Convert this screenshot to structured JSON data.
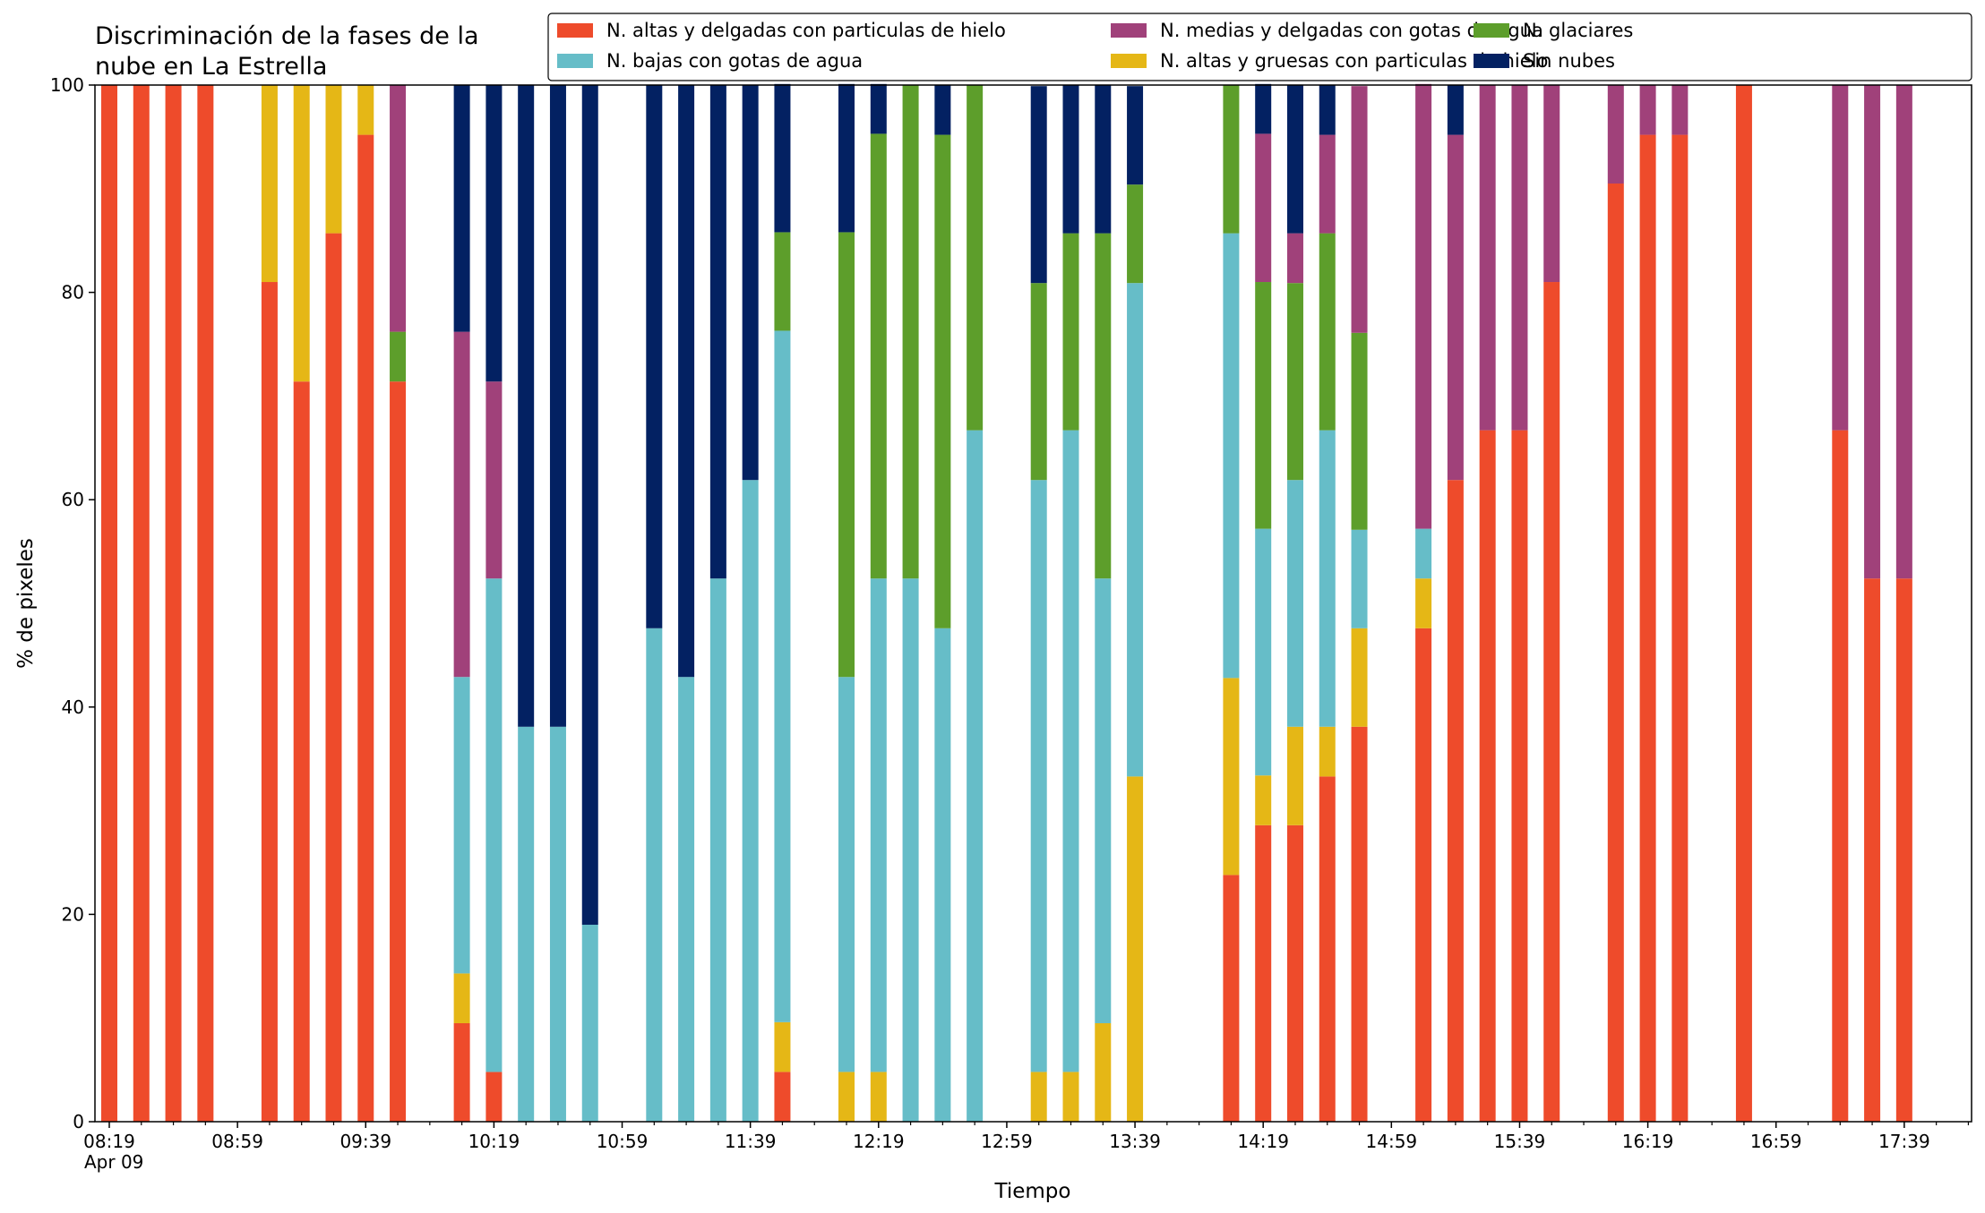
{
  "chart_data": {
    "type": "bar",
    "stacked": true,
    "title_lines": [
      "Discriminación de la fases de la",
      "nube en La Estrella"
    ],
    "xlabel": "Tiempo",
    "ylabel": "% de pixeles",
    "ylim": [
      0,
      100
    ],
    "yticks": [
      0,
      20,
      40,
      60,
      80,
      100
    ],
    "x_tick_labels": [
      "08:19",
      "08:59",
      "09:39",
      "10:19",
      "10:59",
      "11:39",
      "12:19",
      "12:59",
      "13:39",
      "14:19",
      "14:59",
      "15:39",
      "16:19",
      "16:59",
      "17:39"
    ],
    "x_date_label": "Apr 09",
    "x_start": "08:19",
    "x_end": "18:00",
    "legend_position": "top-right",
    "series": [
      {
        "name": "N. altas y delgadas con particulas de hielo",
        "color": "#ee4b2b"
      },
      {
        "name": "N. altas y gruesas con particulas de hielo",
        "color": "#e5b716"
      },
      {
        "name": "N. bajas con gotas de agua",
        "color": "#66bdc8"
      },
      {
        "name": "N. glaciares",
        "color": "#5d9e2b"
      },
      {
        "name": "N. medias y delgadas con gotas de agua",
        "color": "#a0417a"
      },
      {
        "name": "Sin nubes",
        "color": "#032162"
      }
    ],
    "legend_order": [
      0,
      2,
      4,
      1,
      3,
      5
    ],
    "bars": [
      {
        "time": "08:19",
        "values": [
          100,
          0,
          0,
          0,
          0,
          0
        ]
      },
      {
        "time": "08:29",
        "values": [
          100,
          0,
          0,
          0,
          0,
          0
        ]
      },
      {
        "time": "08:39",
        "values": [
          100,
          0,
          0,
          0,
          0,
          0
        ]
      },
      {
        "time": "08:49",
        "values": [
          100,
          0,
          0,
          0,
          0,
          0
        ]
      },
      {
        "time": "09:09",
        "values": [
          81,
          19,
          0,
          0,
          0,
          0
        ]
      },
      {
        "time": "09:19",
        "values": [
          71.4,
          28.6,
          0,
          0,
          0,
          0
        ]
      },
      {
        "time": "09:29",
        "values": [
          85.7,
          14.3,
          0,
          0,
          0,
          0
        ]
      },
      {
        "time": "09:39",
        "values": [
          95.2,
          4.8,
          0,
          0,
          0,
          0
        ]
      },
      {
        "time": "09:49",
        "values": [
          71.4,
          0,
          0,
          4.8,
          23.8,
          0
        ]
      },
      {
        "time": "10:09",
        "values": [
          9.5,
          4.8,
          28.6,
          0,
          33.3,
          23.8
        ]
      },
      {
        "time": "10:19",
        "values": [
          4.8,
          0,
          47.6,
          0,
          19,
          28.6
        ]
      },
      {
        "time": "10:29",
        "values": [
          0,
          0,
          38.1,
          0,
          0,
          61.9
        ]
      },
      {
        "time": "10:39",
        "values": [
          0,
          0,
          38.1,
          0,
          0,
          61.9
        ]
      },
      {
        "time": "10:49",
        "values": [
          0,
          0,
          19,
          0,
          0,
          81
        ]
      },
      {
        "time": "11:09",
        "values": [
          0,
          0,
          47.6,
          0,
          0,
          52.4
        ]
      },
      {
        "time": "11:19",
        "values": [
          0,
          0,
          42.9,
          0,
          0,
          57.1
        ]
      },
      {
        "time": "11:29",
        "values": [
          0,
          0,
          52.4,
          0,
          0,
          47.6
        ]
      },
      {
        "time": "11:39",
        "values": [
          0,
          0,
          61.9,
          0,
          0,
          38.1
        ]
      },
      {
        "time": "11:49",
        "values": [
          4.8,
          4.8,
          66.7,
          9.5,
          0,
          14.3
        ]
      },
      {
        "time": "12:09",
        "values": [
          0,
          4.8,
          38.1,
          42.9,
          0,
          14.3
        ]
      },
      {
        "time": "12:19",
        "values": [
          0,
          4.8,
          47.6,
          42.9,
          0,
          4.8
        ]
      },
      {
        "time": "12:29",
        "values": [
          0,
          0,
          52.4,
          47.6,
          0,
          0
        ]
      },
      {
        "time": "12:39",
        "values": [
          0,
          0,
          47.6,
          47.6,
          0,
          4.8
        ]
      },
      {
        "time": "12:49",
        "values": [
          0,
          0,
          66.7,
          33.3,
          0,
          0
        ]
      },
      {
        "time": "13:09",
        "values": [
          0,
          4.8,
          57.1,
          19,
          0,
          19
        ]
      },
      {
        "time": "13:19",
        "values": [
          0,
          4.8,
          61.9,
          19,
          0,
          14.3
        ]
      },
      {
        "time": "13:29",
        "values": [
          0,
          9.5,
          42.9,
          33.3,
          0,
          14.3
        ]
      },
      {
        "time": "13:39",
        "values": [
          0,
          33.3,
          47.6,
          9.5,
          0,
          9.5
        ]
      },
      {
        "time": "14:09",
        "values": [
          23.8,
          19,
          42.9,
          14.3,
          0,
          0
        ]
      },
      {
        "time": "14:19",
        "values": [
          28.6,
          4.8,
          23.8,
          23.8,
          14.3,
          4.8
        ]
      },
      {
        "time": "14:29",
        "values": [
          28.6,
          9.5,
          23.8,
          19,
          4.8,
          14.3
        ]
      },
      {
        "time": "14:39",
        "values": [
          33.3,
          4.8,
          28.6,
          19,
          9.5,
          4.8
        ]
      },
      {
        "time": "14:49",
        "values": [
          38.1,
          9.5,
          9.5,
          19,
          23.8,
          0
        ]
      },
      {
        "time": "15:09",
        "values": [
          47.6,
          4.8,
          4.8,
          0,
          42.9,
          0
        ]
      },
      {
        "time": "15:19",
        "values": [
          61.9,
          0,
          0,
          0,
          33.3,
          4.8
        ]
      },
      {
        "time": "15:29",
        "values": [
          66.7,
          0,
          0,
          0,
          33.3,
          0
        ]
      },
      {
        "time": "15:39",
        "values": [
          66.7,
          0,
          0,
          0,
          33.3,
          0
        ]
      },
      {
        "time": "15:49",
        "values": [
          81,
          0,
          0,
          0,
          19,
          0
        ]
      },
      {
        "time": "16:09",
        "values": [
          90.5,
          0,
          0,
          0,
          9.5,
          0
        ]
      },
      {
        "time": "16:19",
        "values": [
          95.2,
          0,
          0,
          0,
          4.8,
          0
        ]
      },
      {
        "time": "16:29",
        "values": [
          95.2,
          0,
          0,
          0,
          4.8,
          0
        ]
      },
      {
        "time": "16:49",
        "values": [
          100,
          0,
          0,
          0,
          0,
          0
        ]
      },
      {
        "time": "17:19",
        "values": [
          66.7,
          0,
          0,
          0,
          33.3,
          0
        ]
      },
      {
        "time": "17:29",
        "values": [
          52.4,
          0,
          0,
          0,
          47.6,
          0
        ]
      },
      {
        "time": "17:39",
        "values": [
          52.4,
          0,
          0,
          0,
          47.6,
          0
        ]
      }
    ]
  }
}
